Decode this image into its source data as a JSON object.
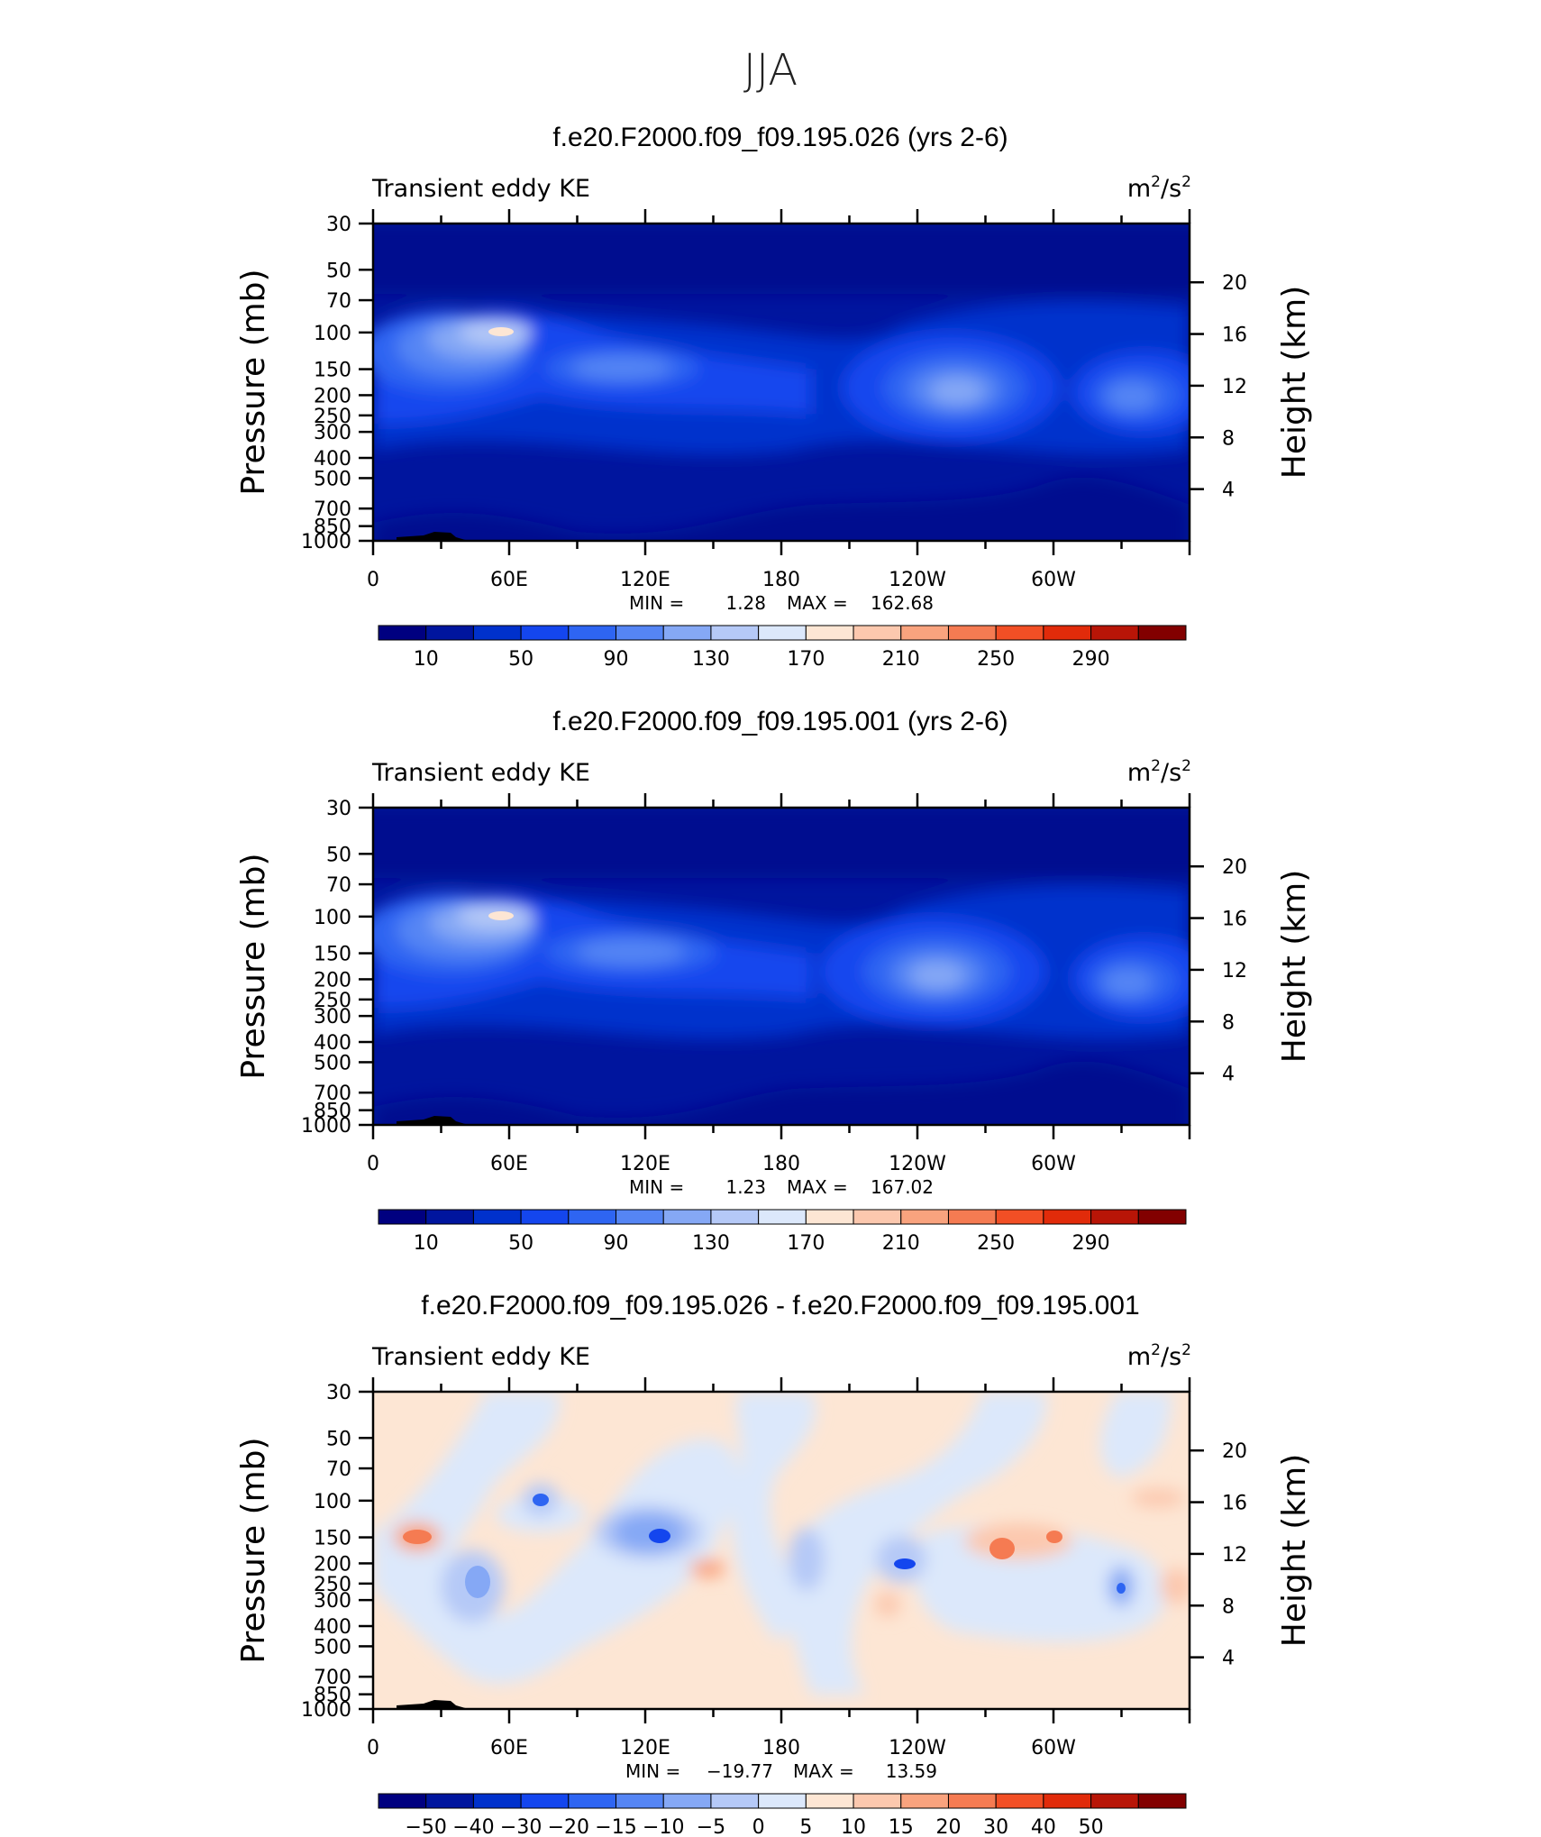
{
  "figure": {
    "title": "JJA"
  },
  "palettes": {
    "abs": [
      "#000080",
      "#00159e",
      "#0031cc",
      "#1446ee",
      "#2e65f2",
      "#5585f4",
      "#85a8f5",
      "#b5c9f7",
      "#dce8fb",
      "#fde6d4",
      "#fcc8ae",
      "#f9a37e",
      "#f57b52",
      "#f24f25",
      "#e12b0a",
      "#b81507",
      "#820000"
    ],
    "diff": [
      "#000080",
      "#00159e",
      "#0031cc",
      "#1446ee",
      "#2e65f2",
      "#5585f4",
      "#85a8f5",
      "#b5c9f7",
      "#dce8fb",
      "#fde6d4",
      "#fcc8ae",
      "#f9a37e",
      "#f57b52",
      "#f24f25",
      "#e12b0a",
      "#b81507",
      "#820000"
    ]
  },
  "chart_data": [
    {
      "type": "heatmap",
      "title": "f.e20.F2000.f09_f09.195.026 (yrs 2-6)",
      "left_label": "Transient eddy KE",
      "right_label": "m²/s²",
      "units_base": "m",
      "units_sup1": "2",
      "units_mid": "/s",
      "units_sup2": "2",
      "ylabel": "Pressure (mb)",
      "ylabel_right": "Height (km)",
      "x_ticks": [
        "0",
        "60E",
        "120E",
        "180",
        "120W",
        "60W"
      ],
      "y_ticks": [
        "30",
        "50",
        "70",
        "100",
        "150",
        "200",
        "250",
        "300",
        "400",
        "500",
        "700",
        "850",
        "1000"
      ],
      "y_ticks_right": [
        "20",
        "16",
        "12",
        "8",
        "4"
      ],
      "stats": {
        "min_label": "MIN =",
        "min": "1.28",
        "max_label": "MAX =",
        "max": "162.68"
      },
      "colorbar": {
        "labels": [
          "10",
          "50",
          "90",
          "130",
          "170",
          "210",
          "250",
          "290"
        ]
      }
    },
    {
      "type": "heatmap",
      "title": "f.e20.F2000.f09_f09.195.001 (yrs 2-6)",
      "left_label": "Transient eddy KE",
      "right_label": "m²/s²",
      "units_base": "m",
      "units_sup1": "2",
      "units_mid": "/s",
      "units_sup2": "2",
      "ylabel": "Pressure (mb)",
      "ylabel_right": "Height (km)",
      "x_ticks": [
        "0",
        "60E",
        "120E",
        "180",
        "120W",
        "60W"
      ],
      "y_ticks": [
        "30",
        "50",
        "70",
        "100",
        "150",
        "200",
        "250",
        "300",
        "400",
        "500",
        "700",
        "850",
        "1000"
      ],
      "y_ticks_right": [
        "20",
        "16",
        "12",
        "8",
        "4"
      ],
      "stats": {
        "min_label": "MIN =",
        "min": "1.23",
        "max_label": "MAX =",
        "max": "167.02"
      },
      "colorbar": {
        "labels": [
          "10",
          "50",
          "90",
          "130",
          "170",
          "210",
          "250",
          "290"
        ]
      }
    },
    {
      "type": "heatmap",
      "title": "f.e20.F2000.f09_f09.195.026 - f.e20.F2000.f09_f09.195.001",
      "left_label": "Transient eddy KE",
      "right_label": "m²/s²",
      "units_base": "m",
      "units_sup1": "2",
      "units_mid": "/s",
      "units_sup2": "2",
      "ylabel": "Pressure (mb)",
      "ylabel_right": "Height (km)",
      "x_ticks": [
        "0",
        "60E",
        "120E",
        "180",
        "120W",
        "60W"
      ],
      "y_ticks": [
        "30",
        "50",
        "70",
        "100",
        "150",
        "200",
        "250",
        "300",
        "400",
        "500",
        "700",
        "850",
        "1000"
      ],
      "y_ticks_right": [
        "20",
        "16",
        "12",
        "8",
        "4"
      ],
      "stats": {
        "min_label": "MIN =",
        "min": "−19.77",
        "max_label": "MAX =",
        "max": "13.59"
      },
      "colorbar": {
        "labels": [
          "−50",
          "−40",
          "−30",
          "−20",
          "−15",
          "−10",
          "−5",
          "0",
          "5",
          "10",
          "15",
          "20",
          "30",
          "40",
          "50"
        ]
      }
    }
  ]
}
